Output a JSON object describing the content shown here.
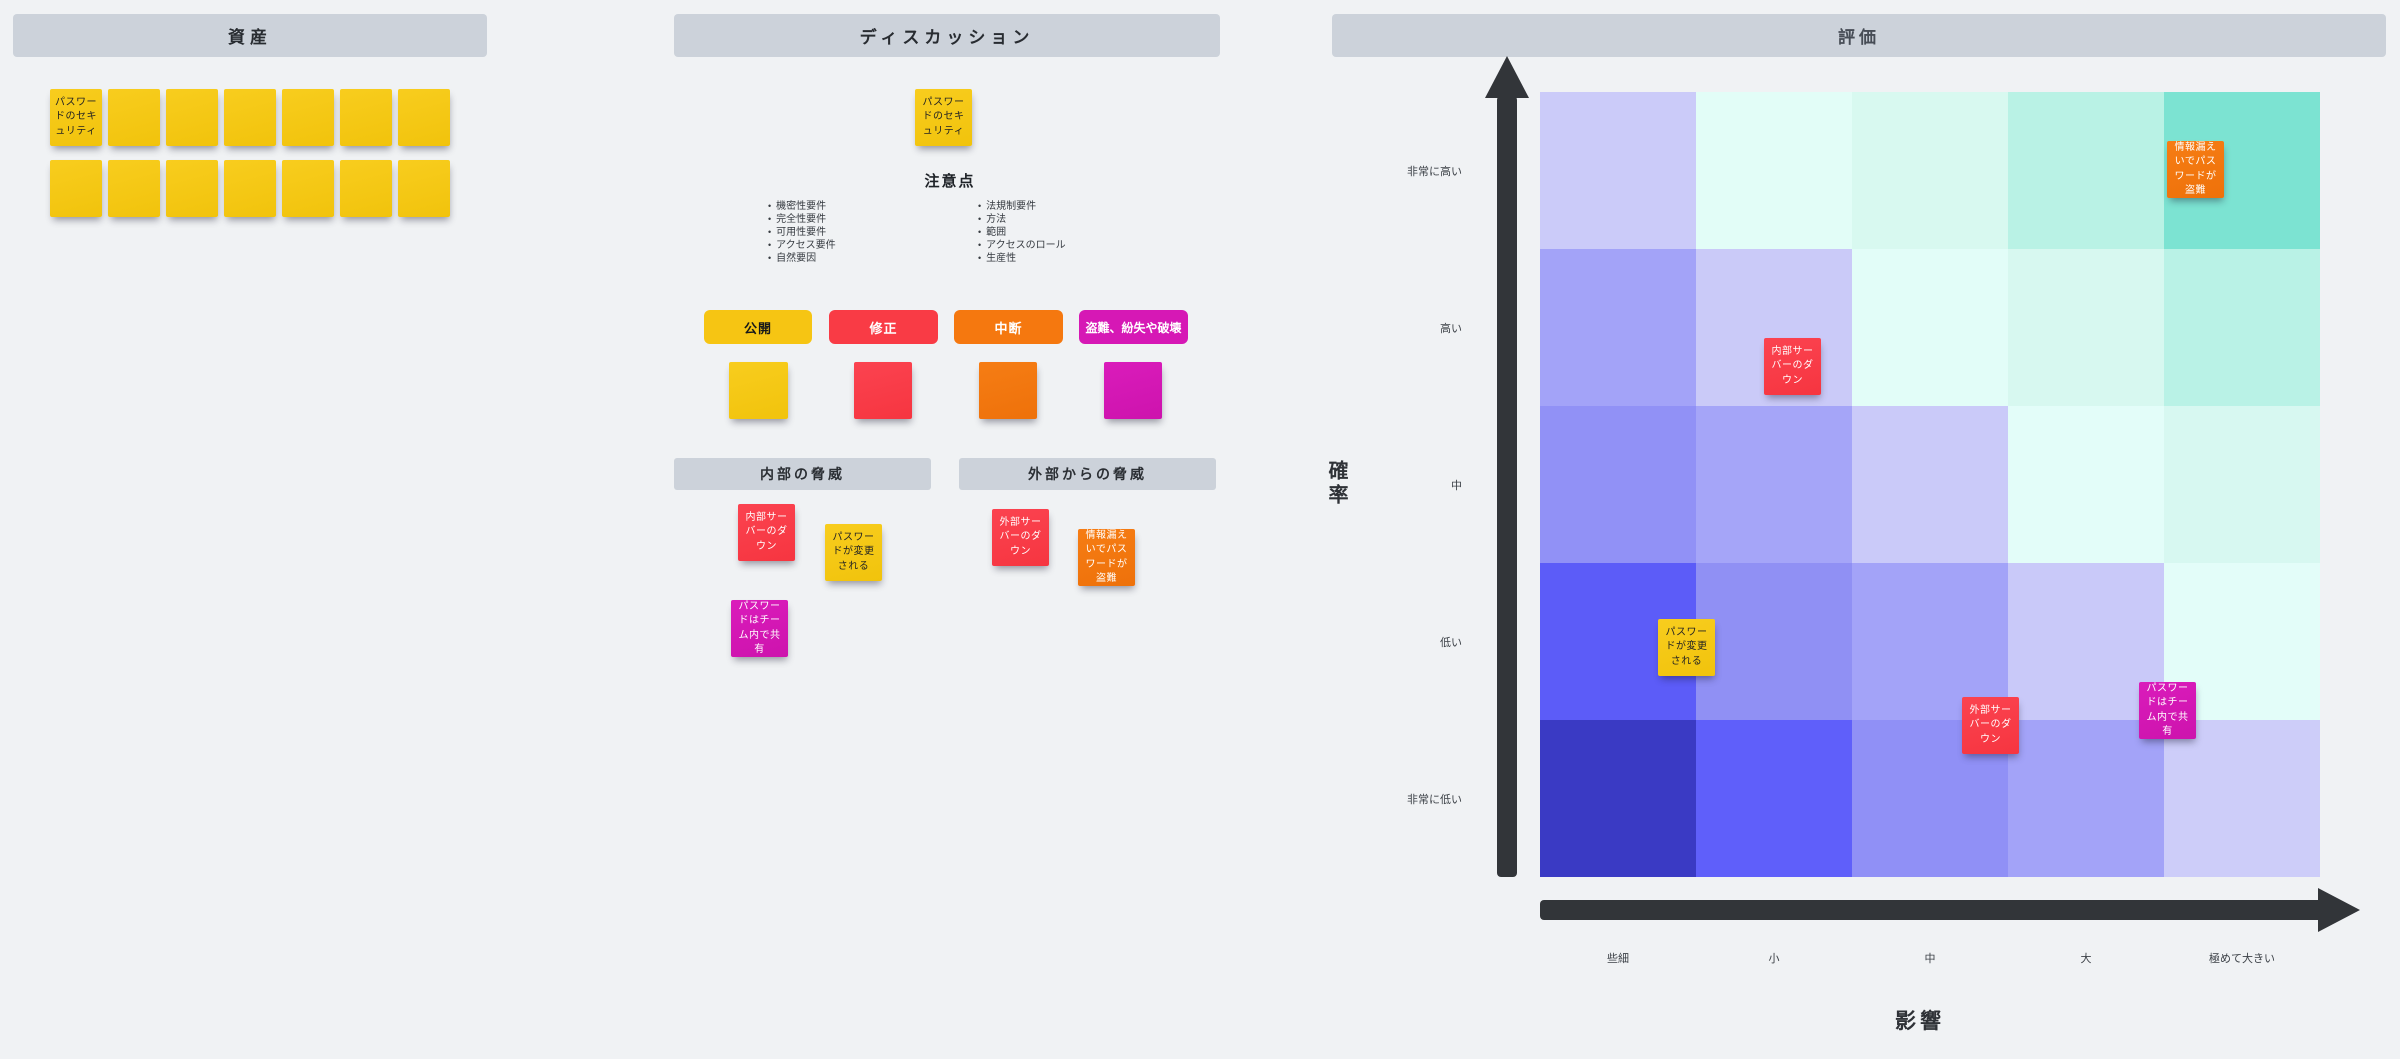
{
  "palette": {
    "canvas_bg": "#f0f2f4",
    "header_bg": "#ccd2da",
    "sticky_yellow": "#f5c514",
    "sticky_red": "#f93b45",
    "sticky_orange": "#f2770e",
    "sticky_magenta": "#d618b5",
    "arrow": "#323539"
  },
  "assets": {
    "title": "資産",
    "notes": [
      "パスワードのセキュリティ",
      "",
      "",
      "",
      "",
      "",
      "",
      "",
      "",
      "",
      "",
      "",
      "",
      ""
    ]
  },
  "discussion": {
    "title": "ディスカッション",
    "top_note": "パスワードのセキュリティ",
    "notes_heading": "注意点",
    "bullets_left": [
      "機密性要件",
      "完全性要件",
      "可用性要件",
      "アクセス要件",
      "自然要因"
    ],
    "bullets_right": [
      "法規制要件",
      "方法",
      "範囲",
      "アクセスのロール",
      "生産性"
    ],
    "chips": [
      {
        "label": "公開",
        "color": "#f6c513"
      },
      {
        "label": "修正",
        "color": "#f93b45"
      },
      {
        "label": "中断",
        "color": "#f5780f"
      },
      {
        "label": "盗難、紛失や破壊",
        "color": "#d618b5"
      }
    ],
    "threat_groups": [
      {
        "title": "内部の脅威"
      },
      {
        "title": "外部からの脅威"
      }
    ],
    "internal_notes": [
      {
        "text": "内部サーバーのダウン",
        "color": "red"
      },
      {
        "text": "パスワードが変更される",
        "color": "yellow"
      },
      {
        "text": "パスワードはチーム内で共有",
        "color": "magenta"
      }
    ],
    "external_notes": [
      {
        "text": "外部サーバーのダウン",
        "color": "red"
      },
      {
        "text": "情報漏えいでパスワードが盗難",
        "color": "orange"
      }
    ]
  },
  "evaluation": {
    "title": "評価",
    "y_axis_label": "確率",
    "x_axis_label": "影響",
    "row_labels": [
      "非常に高い",
      "高い",
      "中",
      "低い",
      "非常に低い"
    ],
    "col_labels": [
      "些細",
      "小",
      "中",
      "大",
      "極めて大きい"
    ],
    "cell_colors": [
      [
        "#cbcbf9",
        "#e2fdf7",
        "#d8f9f0",
        "#b9f2e5",
        "#7ce3d2"
      ],
      [
        "#a3a3f8",
        "#cacaf8",
        "#e2fdf8",
        "#d7f8f0",
        "#b9f2e6"
      ],
      [
        "#9191f6",
        "#a5a5f8",
        "#cacaf9",
        "#e3fdf9",
        "#d7f8f1"
      ],
      [
        "#5c5cf8",
        "#9090f4",
        "#a3a3f8",
        "#c9c9f9",
        "#e3fdf9"
      ],
      [
        "#3a3ac4",
        "#5f5ffa",
        "#9090f6",
        "#a3a3f8",
        "#cdcdf9"
      ]
    ],
    "placed_notes": [
      {
        "text": "情報漏えいでパスワードが盗難",
        "color": "orange",
        "probability": "非常に高い",
        "impact": "極めて大きい"
      },
      {
        "text": "内部サーバーのダウン",
        "color": "red",
        "probability": "高い",
        "impact": "小"
      },
      {
        "text": "パスワードが変更される",
        "color": "yellow",
        "probability": "低い",
        "impact": "些細"
      },
      {
        "text": "外部サーバーのダウン",
        "color": "red",
        "probability": "低い",
        "impact": "中"
      },
      {
        "text": "パスワードはチーム内で共有",
        "color": "magenta",
        "probability": "低い",
        "impact": "大"
      }
    ]
  }
}
